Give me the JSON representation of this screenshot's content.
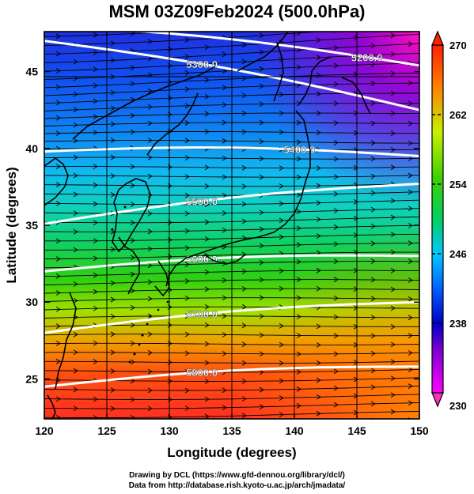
{
  "title": "MSM 03Z09Feb2024 (500.0hPa)",
  "chart_data": {
    "type": "heatmap",
    "xlabel": "Longitude (degrees)",
    "ylabel": "Latitude  (degrees)",
    "xlim": [
      120,
      150
    ],
    "ylim": [
      22.4,
      47.6
    ],
    "x_ticks": [
      "120",
      "125",
      "130",
      "135",
      "140",
      "145",
      "150"
    ],
    "y_ticks": [
      "25",
      "30",
      "35",
      "40",
      "45"
    ],
    "colorbar": {
      "min": 230,
      "max": 270,
      "ticks": [
        "230",
        "238",
        "246",
        "254",
        "262",
        "270"
      ]
    },
    "contours": [
      {
        "label": "5200.0",
        "lat_west": 48.0,
        "lat_east": 45.4
      },
      {
        "label": "5300.0",
        "lat_west": 47.0,
        "lat_east": 42.5
      },
      {
        "label": "5400.0",
        "lat_west": 39.8,
        "lat_east": 39.5
      },
      {
        "label": "5500.0",
        "lat_west": 35.1,
        "lat_east": 37.7
      },
      {
        "label": "5600.0",
        "lat_west": 32.0,
        "lat_east": 33.0
      },
      {
        "label": "5700.0",
        "lat_west": 28.0,
        "lat_east": 30.0
      },
      {
        "label": "5800.0",
        "lat_west": 24.5,
        "lat_east": 25.8
      }
    ]
  },
  "credits": {
    "line1": "Drawing by DCL (https://www.gfd-dennou.org/library/dcl/)",
    "line2": "Data from http://database.rish.kyoto-u.ac.jp/arch/jmadata/"
  }
}
